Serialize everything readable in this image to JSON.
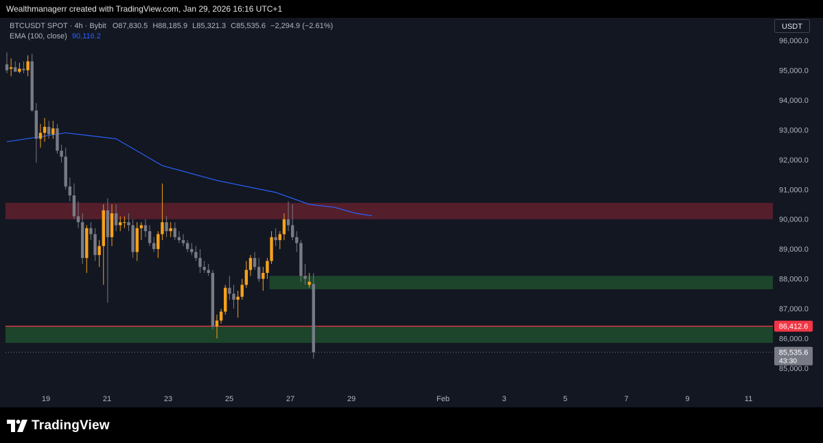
{
  "header": {
    "attribution": "Wealthmanagerr created with TradingView.com, Jan 29, 2026 16:16 UTC+1"
  },
  "legend": {
    "symbol": "BTCUSDT SPOT · 4h · Bybit",
    "o_label": "O",
    "o_value": "87,830.5",
    "h_label": "H",
    "h_value": "88,185.9",
    "l_label": "L",
    "l_value": "85,321.3",
    "c_label": "C",
    "c_value": "85,535.6",
    "change": "−2,294.9 (−2.61%)",
    "ema_label": "EMA (100, close)",
    "ema_value": "90,116.2"
  },
  "currency_button": "USDT",
  "footer": {
    "brand": "TradingView"
  },
  "colors": {
    "background": "#131722",
    "up": "#f7a21b",
    "down": "#787b86",
    "ema": "#2962ff",
    "resistance_zone": "#5c1f2c",
    "support_zone": "#1e4a2c",
    "level_line": "#f23645"
  },
  "chart_data": {
    "type": "candlestick",
    "symbol": "BTCUSDT",
    "timeframe": "4h",
    "ylim": [
      84800,
      96500
    ],
    "y_ticks": [
      85000,
      86000,
      87000,
      88000,
      89000,
      90000,
      91000,
      92000,
      93000,
      94000,
      95000,
      96000
    ],
    "y_tick_labels": [
      "85,000.0",
      "86,000.0",
      "87,000.0",
      "88,000.0",
      "89,000.0",
      "90,000.0",
      "91,000.0",
      "92,000.0",
      "93,000.0",
      "94,000.0",
      "95,000.0",
      "96,000.0"
    ],
    "x_ticks": [
      {
        "day": 19,
        "label": "19"
      },
      {
        "day": 21,
        "label": "21"
      },
      {
        "day": 23,
        "label": "23"
      },
      {
        "day": 25,
        "label": "25"
      },
      {
        "day": 27,
        "label": "27"
      },
      {
        "day": 29,
        "label": "29"
      },
      {
        "day": 32,
        "label": "Feb"
      },
      {
        "day": 34,
        "label": "3"
      },
      {
        "day": 36,
        "label": "5"
      },
      {
        "day": 38,
        "label": "7"
      },
      {
        "day": 40,
        "label": "9"
      },
      {
        "day": 42,
        "label": "11"
      }
    ],
    "candles": [
      {
        "o": 95200,
        "h": 95600,
        "l": 94900,
        "c": 95000
      },
      {
        "o": 95050,
        "h": 95400,
        "l": 94800,
        "c": 95100
      },
      {
        "o": 95100,
        "h": 95300,
        "l": 94950,
        "c": 94950
      },
      {
        "o": 94950,
        "h": 95250,
        "l": 94900,
        "c": 95050
      },
      {
        "o": 95050,
        "h": 95300,
        "l": 94900,
        "c": 95000
      },
      {
        "o": 95000,
        "h": 95500,
        "l": 94800,
        "c": 95300
      },
      {
        "o": 95300,
        "h": 95550,
        "l": 93600,
        "c": 93650
      },
      {
        "o": 93650,
        "h": 93900,
        "l": 91900,
        "c": 92700
      },
      {
        "o": 92700,
        "h": 93200,
        "l": 92400,
        "c": 92900
      },
      {
        "o": 92900,
        "h": 93400,
        "l": 92600,
        "c": 93100
      },
      {
        "o": 93100,
        "h": 93300,
        "l": 92700,
        "c": 92850
      },
      {
        "o": 92850,
        "h": 93300,
        "l": 92700,
        "c": 93050
      },
      {
        "o": 93050,
        "h": 93200,
        "l": 92200,
        "c": 92300
      },
      {
        "o": 92300,
        "h": 92500,
        "l": 91900,
        "c": 92100
      },
      {
        "o": 92100,
        "h": 92400,
        "l": 91000,
        "c": 91100
      },
      {
        "o": 91100,
        "h": 91400,
        "l": 90600,
        "c": 90800
      },
      {
        "o": 90800,
        "h": 91200,
        "l": 90000,
        "c": 90100
      },
      {
        "o": 90100,
        "h": 90600,
        "l": 89700,
        "c": 89900
      },
      {
        "o": 89900,
        "h": 90200,
        "l": 88500,
        "c": 88700
      },
      {
        "o": 88700,
        "h": 89800,
        "l": 88200,
        "c": 89700
      },
      {
        "o": 89700,
        "h": 89900,
        "l": 89300,
        "c": 89500
      },
      {
        "o": 89500,
        "h": 89700,
        "l": 88600,
        "c": 88800
      },
      {
        "o": 88800,
        "h": 89300,
        "l": 88400,
        "c": 89100
      },
      {
        "o": 89100,
        "h": 90500,
        "l": 87800,
        "c": 90300
      },
      {
        "o": 90300,
        "h": 90700,
        "l": 87200,
        "c": 89400
      },
      {
        "o": 89400,
        "h": 90500,
        "l": 89100,
        "c": 90200
      },
      {
        "o": 90200,
        "h": 90500,
        "l": 89600,
        "c": 89800
      },
      {
        "o": 89800,
        "h": 90100,
        "l": 89600,
        "c": 89900
      },
      {
        "o": 89900,
        "h": 90100,
        "l": 89700,
        "c": 89900
      },
      {
        "o": 89900,
        "h": 90200,
        "l": 89600,
        "c": 89800
      },
      {
        "o": 89800,
        "h": 90000,
        "l": 88700,
        "c": 88900
      },
      {
        "o": 88900,
        "h": 89900,
        "l": 88600,
        "c": 89700
      },
      {
        "o": 89700,
        "h": 89900,
        "l": 89300,
        "c": 89800
      },
      {
        "o": 89800,
        "h": 90000,
        "l": 89400,
        "c": 89600
      },
      {
        "o": 89600,
        "h": 89800,
        "l": 89100,
        "c": 89200
      },
      {
        "o": 89200,
        "h": 89400,
        "l": 88900,
        "c": 89000
      },
      {
        "o": 89000,
        "h": 89600,
        "l": 88700,
        "c": 89500
      },
      {
        "o": 89500,
        "h": 91200,
        "l": 89300,
        "c": 89900
      },
      {
        "o": 89900,
        "h": 90100,
        "l": 89400,
        "c": 89600
      },
      {
        "o": 89600,
        "h": 89900,
        "l": 89400,
        "c": 89700
      },
      {
        "o": 89700,
        "h": 89900,
        "l": 89300,
        "c": 89400
      },
      {
        "o": 89400,
        "h": 89600,
        "l": 89200,
        "c": 89300
      },
      {
        "o": 89300,
        "h": 89500,
        "l": 89100,
        "c": 89200
      },
      {
        "o": 89200,
        "h": 89300,
        "l": 88900,
        "c": 89000
      },
      {
        "o": 89000,
        "h": 89200,
        "l": 88800,
        "c": 88900
      },
      {
        "o": 88900,
        "h": 89100,
        "l": 88600,
        "c": 88700
      },
      {
        "o": 88700,
        "h": 89000,
        "l": 88200,
        "c": 88400
      },
      {
        "o": 88400,
        "h": 88600,
        "l": 88200,
        "c": 88300
      },
      {
        "o": 88300,
        "h": 88500,
        "l": 88100,
        "c": 88200
      },
      {
        "o": 88200,
        "h": 88300,
        "l": 86300,
        "c": 86400
      },
      {
        "o": 86400,
        "h": 86800,
        "l": 86000,
        "c": 86600
      },
      {
        "o": 86600,
        "h": 87000,
        "l": 86500,
        "c": 86900
      },
      {
        "o": 86900,
        "h": 87800,
        "l": 86800,
        "c": 87700
      },
      {
        "o": 87700,
        "h": 88100,
        "l": 87300,
        "c": 87500
      },
      {
        "o": 87500,
        "h": 87800,
        "l": 87000,
        "c": 87300
      },
      {
        "o": 87300,
        "h": 87600,
        "l": 86700,
        "c": 87400
      },
      {
        "o": 87400,
        "h": 88000,
        "l": 87300,
        "c": 87800
      },
      {
        "o": 87800,
        "h": 88600,
        "l": 87700,
        "c": 88300
      },
      {
        "o": 88300,
        "h": 88800,
        "l": 88100,
        "c": 88700
      },
      {
        "o": 88700,
        "h": 88900,
        "l": 88300,
        "c": 88400
      },
      {
        "o": 88400,
        "h": 88700,
        "l": 87900,
        "c": 88000
      },
      {
        "o": 88000,
        "h": 88400,
        "l": 87600,
        "c": 88200
      },
      {
        "o": 88200,
        "h": 88700,
        "l": 88000,
        "c": 88600
      },
      {
        "o": 88600,
        "h": 89600,
        "l": 88500,
        "c": 89400
      },
      {
        "o": 89400,
        "h": 89700,
        "l": 89100,
        "c": 89300
      },
      {
        "o": 89300,
        "h": 89600,
        "l": 89000,
        "c": 89500
      },
      {
        "o": 89500,
        "h": 90200,
        "l": 89300,
        "c": 90000
      },
      {
        "o": 90000,
        "h": 90600,
        "l": 89600,
        "c": 89800
      },
      {
        "o": 89800,
        "h": 90500,
        "l": 89300,
        "c": 89400
      },
      {
        "o": 89400,
        "h": 89600,
        "l": 88900,
        "c": 89200
      },
      {
        "o": 89200,
        "h": 89300,
        "l": 87900,
        "c": 88100
      },
      {
        "o": 88100,
        "h": 88500,
        "l": 87800,
        "c": 88000
      },
      {
        "o": 87800,
        "h": 88200,
        "l": 87700,
        "c": 87900
      },
      {
        "o": 87830.5,
        "h": 88185.9,
        "l": 85321.3,
        "c": 85535.6
      }
    ],
    "ema": {
      "name": "EMA (100, close)",
      "points": [
        [
          0,
          92600
        ],
        [
          14,
          92900
        ],
        [
          26,
          92700
        ],
        [
          37,
          91800
        ],
        [
          50,
          91300
        ],
        [
          64,
          90900
        ],
        [
          72,
          90500
        ],
        [
          78,
          90400
        ],
        [
          83,
          90200
        ],
        [
          87,
          90116.2
        ]
      ]
    },
    "zones": [
      {
        "name": "resistance",
        "from": 90000,
        "to": 90550,
        "start_index": 0
      },
      {
        "name": "support-upper",
        "from": 87650,
        "to": 88100,
        "start_index": 63
      },
      {
        "name": "support-lower",
        "from": 85850,
        "to": 86420,
        "start_index": 0
      }
    ],
    "horizontal_line": 86412.6,
    "price_labels": [
      {
        "price": 86412.6,
        "label": "86,412.6",
        "kind": "level"
      },
      {
        "price": 85535.6,
        "label": "85,535.6",
        "sub": "43:30",
        "kind": "last"
      }
    ]
  }
}
